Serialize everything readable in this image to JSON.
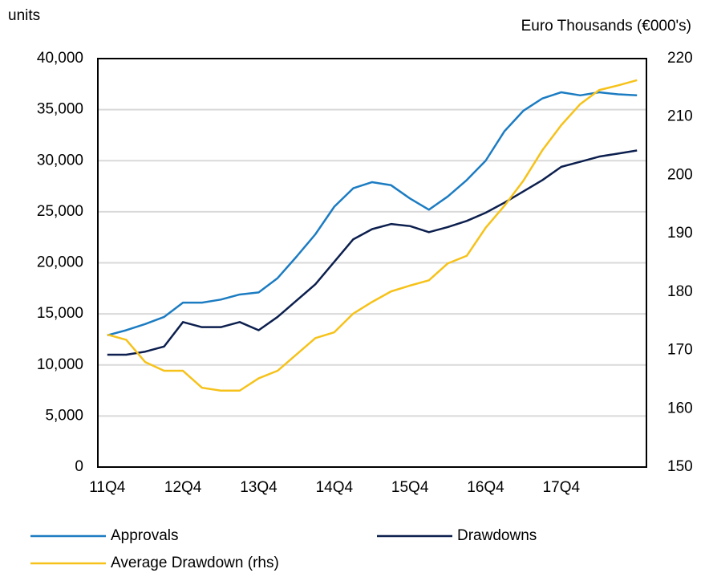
{
  "chart_data": {
    "type": "line",
    "y_label": "units",
    "y2_label": "Euro Thousands (€000's)",
    "categories": [
      "11Q4",
      null,
      null,
      null,
      "12Q4",
      null,
      null,
      null,
      "13Q4",
      null,
      null,
      null,
      "14Q4",
      null,
      null,
      null,
      "15Q4",
      null,
      null,
      null,
      "16Q4",
      null,
      null,
      null,
      "17Q4",
      null,
      null,
      null,
      null
    ],
    "series": [
      {
        "name": "Approvals",
        "color": "#1c7cc2",
        "values": [
          12900,
          13400,
          14000,
          14700,
          16100,
          16100,
          16400,
          16900,
          17100,
          18500,
          20600,
          22800,
          25500,
          27300,
          27900,
          27600,
          26300,
          25200,
          26500,
          28100,
          30000,
          32900,
          34900,
          36100,
          36700,
          36400,
          36700,
          36500,
          36400
        ]
      },
      {
        "name": "Drawdowns",
        "color": "#0c1f4e",
        "values": [
          11000,
          11000,
          11300,
          11800,
          14200,
          13700,
          13700,
          14200,
          13400,
          14700,
          16300,
          17900,
          20100,
          22300,
          23300,
          23800,
          23600,
          23000,
          23500,
          24100,
          24900,
          25900,
          27000,
          28100,
          29400,
          29900,
          30400,
          30700,
          31000
        ]
      },
      {
        "name": "Average Drawdown (rhs)",
        "color": "#f6c21a",
        "axis": "y2",
        "values": [
          172.7,
          171.8,
          168.0,
          166.5,
          166.5,
          163.6,
          163.1,
          163.1,
          165.2,
          166.5,
          169.3,
          172.1,
          173.1,
          176.3,
          178.3,
          180.1,
          181.1,
          182.0,
          184.9,
          186.2,
          191.0,
          194.8,
          199.1,
          204.3,
          208.6,
          212.2,
          214.6,
          215.4,
          216.3
        ]
      }
    ],
    "ylim": [
      0,
      40000
    ],
    "yticks": [
      0,
      {
        "value": 5000,
        "label": "5,000"
      },
      {
        "value": 10000,
        "label": "10,000"
      },
      {
        "value": 15000,
        "label": "15,000"
      },
      {
        "value": 20000,
        "label": "20,000"
      },
      {
        "value": 25000,
        "label": "25,000"
      },
      {
        "value": 30000,
        "label": "30,000"
      },
      {
        "value": 35000,
        "label": "35,000"
      },
      {
        "value": 40000,
        "label": "40,000"
      }
    ],
    "y2lim": [
      150,
      220
    ],
    "y2ticks": [
      150,
      160,
      170,
      180,
      190,
      200,
      210,
      220
    ],
    "grid": true,
    "legend": "bottom"
  }
}
